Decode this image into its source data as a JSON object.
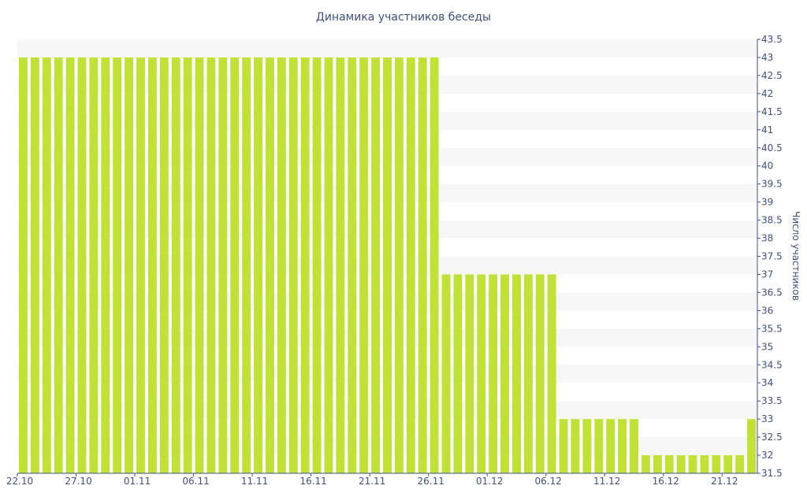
{
  "chart_data": {
    "type": "bar",
    "title": "Динамика участников беседы",
    "xlabel": "",
    "ylabel": "Число участников",
    "y_axis_side": "right",
    "ylim": [
      31.5,
      43.5
    ],
    "ytick_step": 0.5,
    "grid": "horizontal alternating bands",
    "legend": "none",
    "x_tick_labels": [
      "22.10",
      "27.10",
      "01.11",
      "06.11",
      "11.11",
      "16.11",
      "21.11",
      "26.11",
      "01.12",
      "06.12",
      "11.12",
      "16.12",
      "21.12"
    ],
    "categories": [
      "22.10",
      "23.10",
      "24.10",
      "25.10",
      "26.10",
      "27.10",
      "28.10",
      "29.10",
      "30.10",
      "31.10",
      "01.11",
      "02.11",
      "03.11",
      "04.11",
      "05.11",
      "06.11",
      "07.11",
      "08.11",
      "09.11",
      "10.11",
      "11.11",
      "12.11",
      "13.11",
      "14.11",
      "15.11",
      "16.11",
      "17.11",
      "18.11",
      "19.11",
      "20.11",
      "21.11",
      "22.11",
      "23.11",
      "24.11",
      "25.11",
      "26.11",
      "27.11",
      "28.11",
      "29.11",
      "30.11",
      "01.12",
      "02.12",
      "03.12",
      "04.12",
      "05.12",
      "06.12",
      "07.12",
      "08.12",
      "09.12",
      "10.12",
      "11.12",
      "12.12",
      "13.12",
      "14.12",
      "15.12",
      "16.12",
      "17.12",
      "18.12",
      "19.12",
      "20.12",
      "21.12",
      "22.12",
      "23.12"
    ],
    "values": [
      43,
      43,
      43,
      43,
      43,
      43,
      43,
      43,
      43,
      43,
      43,
      43,
      43,
      43,
      43,
      43,
      43,
      43,
      43,
      43,
      43,
      43,
      43,
      43,
      43,
      43,
      43,
      43,
      43,
      43,
      43,
      43,
      43,
      43,
      43,
      43,
      37,
      37,
      37,
      37,
      37,
      37,
      37,
      37,
      37,
      37,
      33,
      33,
      33,
      33,
      33,
      33,
      33,
      32,
      32,
      32,
      32,
      32,
      32,
      32,
      32,
      32,
      33
    ],
    "bar_color": "#c0e236",
    "band_color": "#f7f7f7",
    "axis_color": "#3f4f86"
  }
}
